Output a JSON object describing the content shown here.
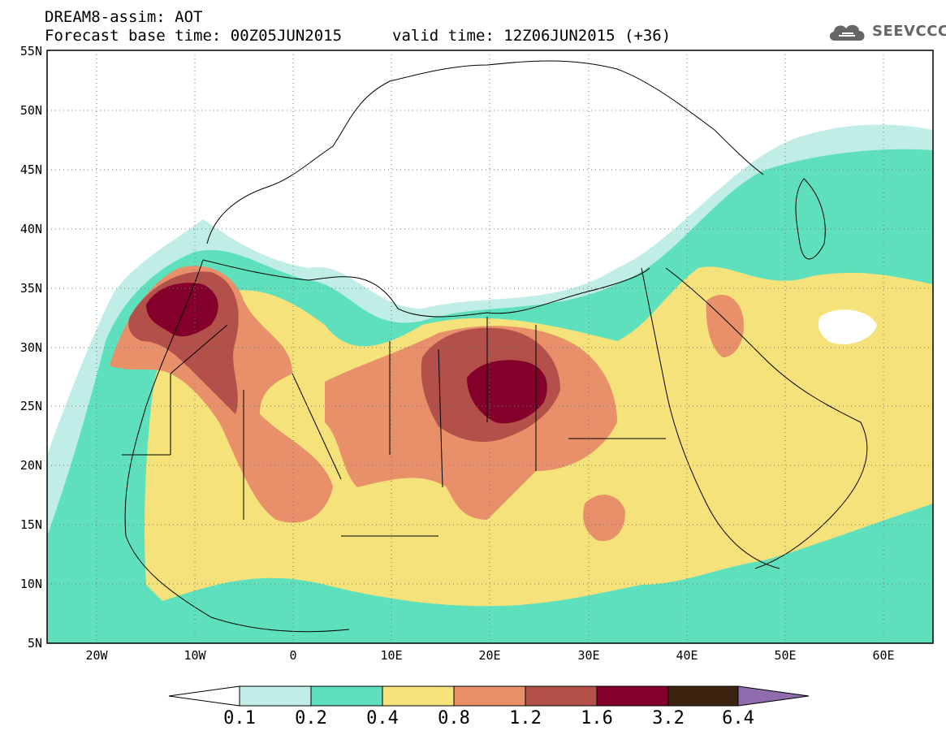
{
  "title": {
    "line1": "DREAM8-assim: AOT",
    "base_time": "Forecast base time: 00Z05JUN2015",
    "valid_time": "valid time: 12Z06JUN2015 (+36)"
  },
  "logo": {
    "text": "SEEVCCC",
    "icon": "cloud-icon"
  },
  "axes": {
    "lat_labels": [
      "55N",
      "50N",
      "45N",
      "40N",
      "35N",
      "30N",
      "25N",
      "20N",
      "15N",
      "10N",
      "5N"
    ],
    "lon_labels": [
      "20W",
      "10W",
      "0",
      "10E",
      "20E",
      "30E",
      "40E",
      "50E",
      "60E"
    ],
    "lat_range": [
      5,
      55
    ],
    "lon_range": [
      -25,
      65
    ]
  },
  "legend": {
    "levels": [
      "0.1",
      "0.2",
      "0.4",
      "0.8",
      "1.2",
      "1.6",
      "3.2",
      "6.4"
    ],
    "colors": [
      "#ffffff",
      "#c0eee6",
      "#5ee0bd",
      "#f5e27a",
      "#e8906a",
      "#b4504a",
      "#820029",
      "#3c2410",
      "#8e6cae"
    ]
  },
  "colors": {
    "c1": "#c0eee6",
    "c2": "#5ee0bd",
    "c3": "#f5e27a",
    "c4": "#e8906a",
    "c5": "#b4504a",
    "c6": "#820029",
    "land_border": "#000000"
  }
}
